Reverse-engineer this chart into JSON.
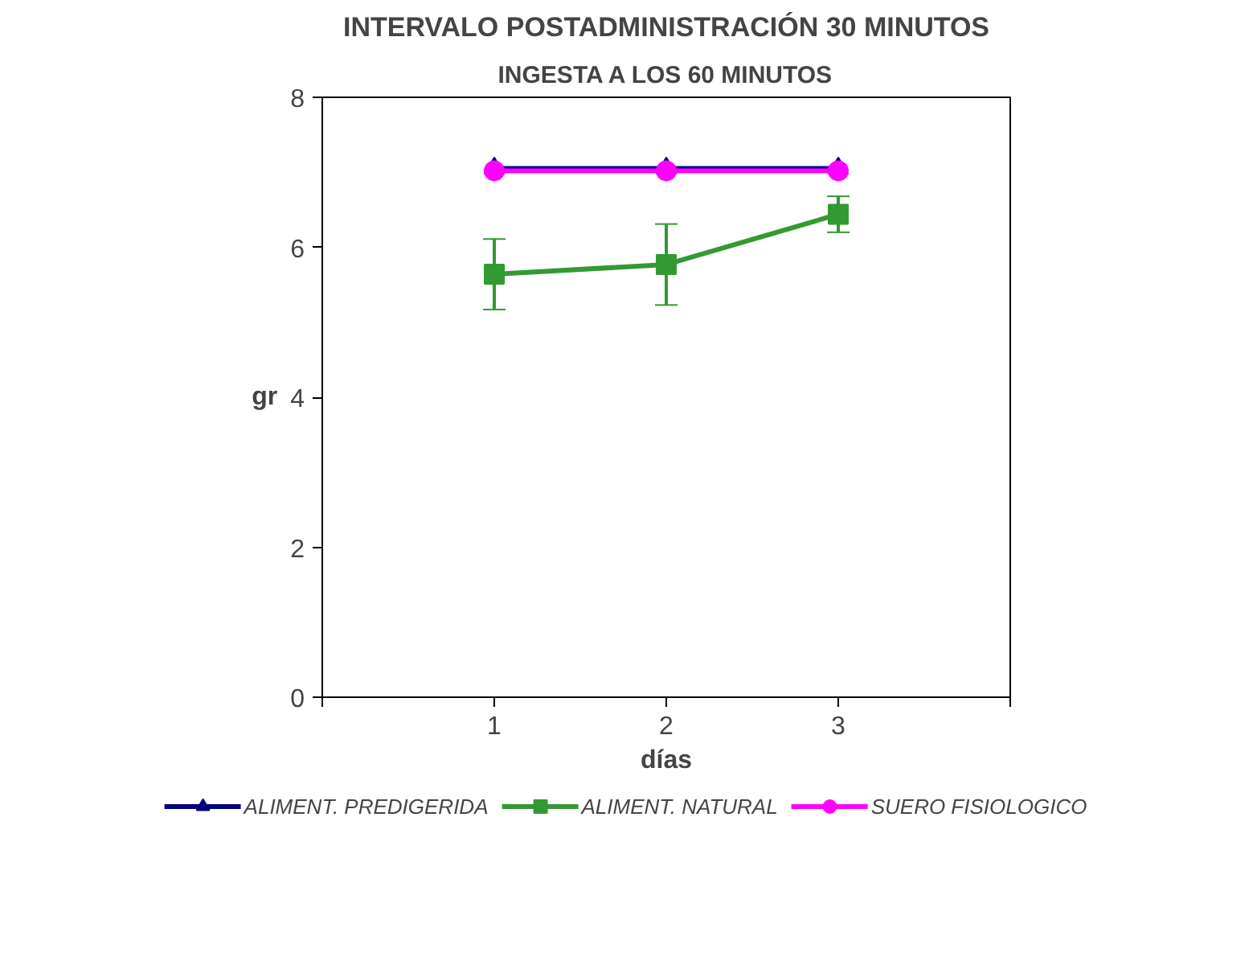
{
  "chart_data": {
    "type": "line",
    "title": "INTERVALO POSTADMINISTRACIÓN 30 MINUTOS",
    "subtitle": "INGESTA A LOS 60 MINUTOS",
    "xlabel": "días",
    "ylabel": "gr",
    "x": [
      1,
      2,
      3
    ],
    "xlim": [
      0,
      4
    ],
    "xticks": [
      {
        "value": 0,
        "label": null
      },
      1,
      2,
      3,
      {
        "value": 4,
        "label": null
      }
    ],
    "ylim": [
      0,
      8
    ],
    "yticks": [
      0,
      2,
      4,
      6,
      8
    ],
    "grid": false,
    "legend": "bottom",
    "series": [
      {
        "name": "ALIMENT. PREDIGERIDA",
        "color": "#000080",
        "marker": "triangle",
        "values": [
          7.05,
          7.05,
          7.05
        ]
      },
      {
        "name": "ALIMENT. NATURAL",
        "color": "#339933",
        "marker": "square",
        "values": [
          5.64,
          5.77,
          6.44
        ],
        "errors": [
          0.47,
          0.54,
          0.24
        ]
      },
      {
        "name": "SUERO FISIOLOGICO",
        "color": "#ff00ff",
        "marker": "circle",
        "values": [
          7.02,
          7.02,
          7.02
        ]
      }
    ]
  }
}
